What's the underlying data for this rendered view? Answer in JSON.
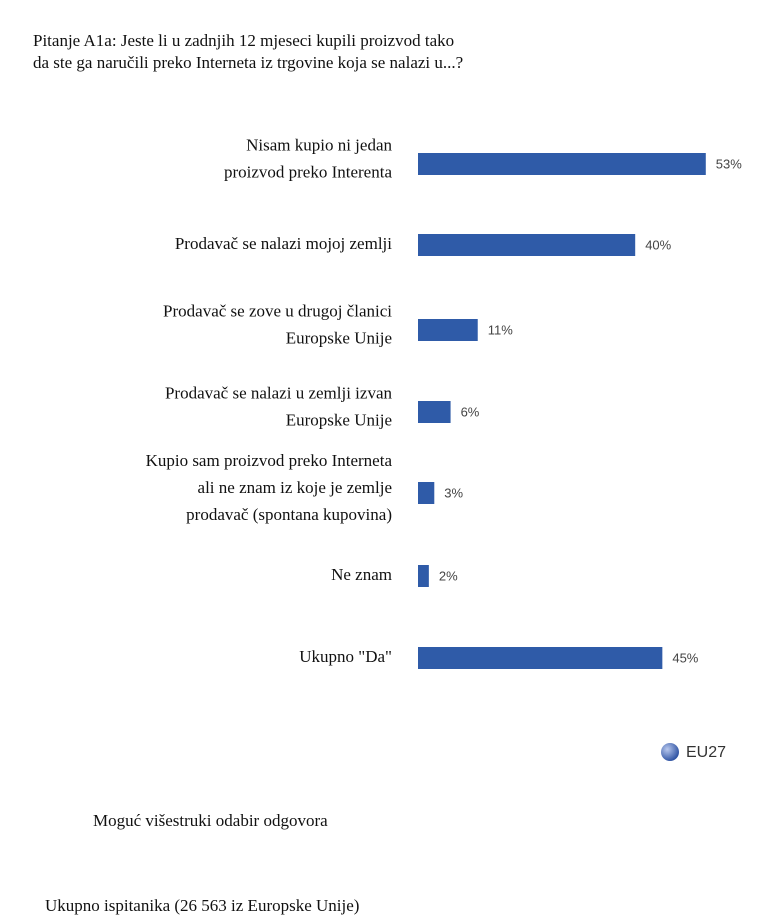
{
  "chart_data": {
    "type": "bar",
    "orientation": "horizontal",
    "title": [
      "Pitanje A1a: Jeste li u zadnjih 12 mjeseci kupili proizvod tako",
      "da ste ga naručili preko Interneta iz trgovine koja se nalazi u...?"
    ],
    "categories": [
      "Nisam kupio ni jedan\nproizvod preko Interenta",
      "Prodavač se nalazi mojoj zemlji",
      "Prodavač se zove u drugoj članici\nEuropske Unije",
      "Prodavač se nalazi u zemlji izvan\nEuropske Unije",
      "Kupio sam proizvod preko Interneta\nali ne znam  iz koje je zemlje\nprodavač (spontana kupovina)",
      "Ne znam",
      "Ukupno \"Da\""
    ],
    "series": [
      {
        "name": "EU27",
        "color": "#2f5ba8",
        "values": [
          53,
          40,
          11,
          6,
          3,
          2,
          45
        ],
        "value_labels": [
          "53%",
          "40%",
          "11%",
          "6%",
          "3%",
          "2%",
          "45%"
        ]
      }
    ],
    "notes": [
      "Moguć višestruki odabir odgovora",
      "Ukupno ispitanika (26 563 iz Europske Unije)"
    ]
  }
}
